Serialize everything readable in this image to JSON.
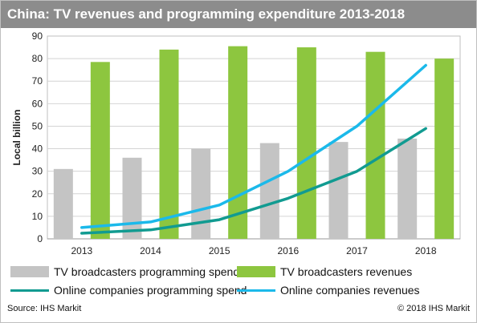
{
  "title": "China: TV revenues and programming expenditure 2013-2018",
  "source": "Source: IHS Markit",
  "copyright": "© 2018 IHS Markit",
  "chart_data": {
    "type": "bar",
    "categories": [
      "2013",
      "2014",
      "2015",
      "2016",
      "2017",
      "2018"
    ],
    "ylabel": "Local billion",
    "ylim": [
      0,
      90
    ],
    "yticks": [
      0,
      10,
      20,
      30,
      40,
      50,
      60,
      70,
      80,
      90
    ],
    "grid": true,
    "legend_position": "bottom",
    "series": [
      {
        "name": "TV broadcasters programming spend",
        "kind": "bar",
        "color": "#c4c4c4",
        "values": [
          31,
          36,
          40,
          42.5,
          43,
          44.5
        ]
      },
      {
        "name": "TV broadcasters revenues",
        "kind": "bar",
        "color": "#8dc63f",
        "values": [
          78.5,
          84,
          85.5,
          85,
          83,
          80
        ]
      },
      {
        "name": "Online companies programming spend",
        "kind": "line",
        "color": "#119b91",
        "values": [
          2.5,
          4,
          8.5,
          18,
          30,
          49
        ]
      },
      {
        "name": "Online companies revenues",
        "kind": "line",
        "color": "#1bb9ea",
        "values": [
          5,
          7.5,
          15,
          30,
          50,
          77
        ]
      }
    ]
  }
}
